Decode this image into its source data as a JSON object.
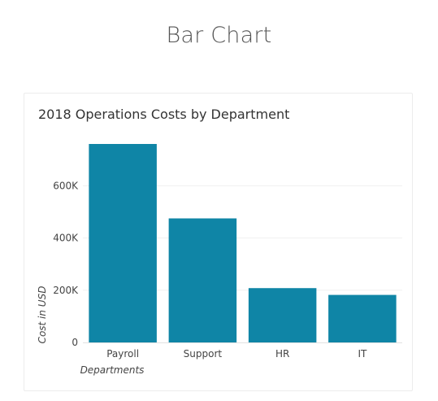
{
  "page": {
    "title": "Bar Chart"
  },
  "chart_data": {
    "type": "bar",
    "title": "2018 Operations Costs by Department",
    "categories": [
      "Payroll",
      "Support",
      "HR",
      "IT"
    ],
    "values": [
      760000,
      475000,
      208000,
      182000
    ],
    "xlabel": "Departments",
    "ylabel": "Cost in USD",
    "ylim": [
      0,
      760000
    ],
    "yticks": [
      0,
      200000,
      400000,
      600000
    ],
    "ytick_labels": [
      "0",
      "200K",
      "400K",
      "600K"
    ],
    "grid": true,
    "legend": "none",
    "bar_color": "#0f85a6"
  }
}
